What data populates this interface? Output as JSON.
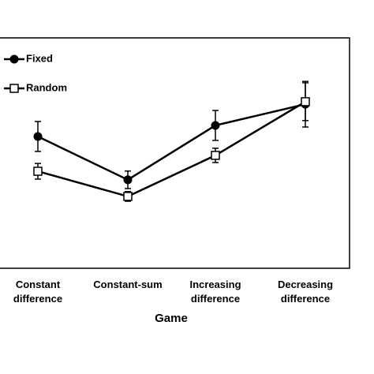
{
  "chart_data": {
    "type": "line",
    "x_label": "Game",
    "categories": [
      "Constant difference",
      "Constant-sum",
      "Increasing difference",
      "Decreasing difference"
    ],
    "series": [
      {
        "name": "Fixed",
        "color": "#000000",
        "marker": "filled-circle",
        "values": [
          57.2,
          38.4,
          62.0,
          71.2
        ],
        "errors": [
          6.5,
          3.8,
          6.5,
          9.9
        ]
      },
      {
        "name": "Random",
        "color": "#000000",
        "marker": "open-square",
        "values": [
          42.1,
          31.2,
          49.0,
          72.3
        ],
        "errors": [
          3.4,
          2.1,
          3.1,
          8.2
        ]
      }
    ],
    "ylim": [
      0,
      100
    ],
    "legend": "top-left"
  }
}
